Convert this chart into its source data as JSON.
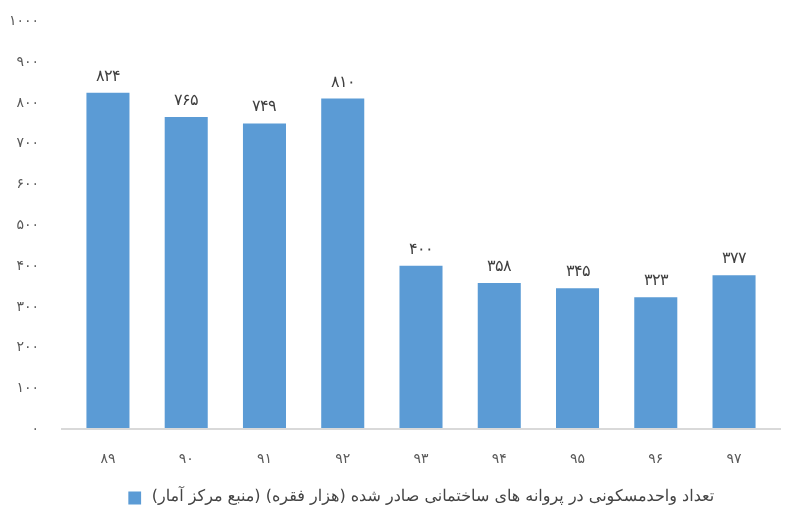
{
  "chart_data": {
    "type": "bar",
    "categories": [
      "۸۹",
      "۹۰",
      "۹۱",
      "۹۲",
      "۹۳",
      "۹۴",
      "۹۵",
      "۹۶",
      "۹۷"
    ],
    "series": [
      {
        "name": "تعداد واحدمسکونی در پروانه های ساختمانی صادر شده (هزار فقره) (منبع مرکز آمار)",
        "color": "#5b9bd5",
        "values": [
          824,
          765,
          749,
          810,
          400,
          358,
          345,
          323,
          377
        ],
        "value_labels": [
          "۸۲۴",
          "۷۶۵",
          "۷۴۹",
          "۸۱۰",
          "۴۰۰",
          "۳۵۸",
          "۳۴۵",
          "۳۲۳",
          "۳۷۷"
        ]
      }
    ],
    "ylim": [
      0,
      1000
    ],
    "yticks": [
      {
        "value": 0,
        "label": "۰"
      },
      {
        "value": 100,
        "label": "۱۰۰"
      },
      {
        "value": 200,
        "label": "۲۰۰"
      },
      {
        "value": 300,
        "label": "۳۰۰"
      },
      {
        "value": 400,
        "label": "۴۰۰"
      },
      {
        "value": 500,
        "label": "۵۰۰"
      },
      {
        "value": 600,
        "label": "۶۰۰"
      },
      {
        "value": 700,
        "label": "۷۰۰"
      },
      {
        "value": 800,
        "label": "۸۰۰"
      },
      {
        "value": 900,
        "label": "۹۰۰"
      },
      {
        "value": 1000,
        "label": "۱۰۰۰"
      }
    ],
    "legend": "bottom"
  }
}
